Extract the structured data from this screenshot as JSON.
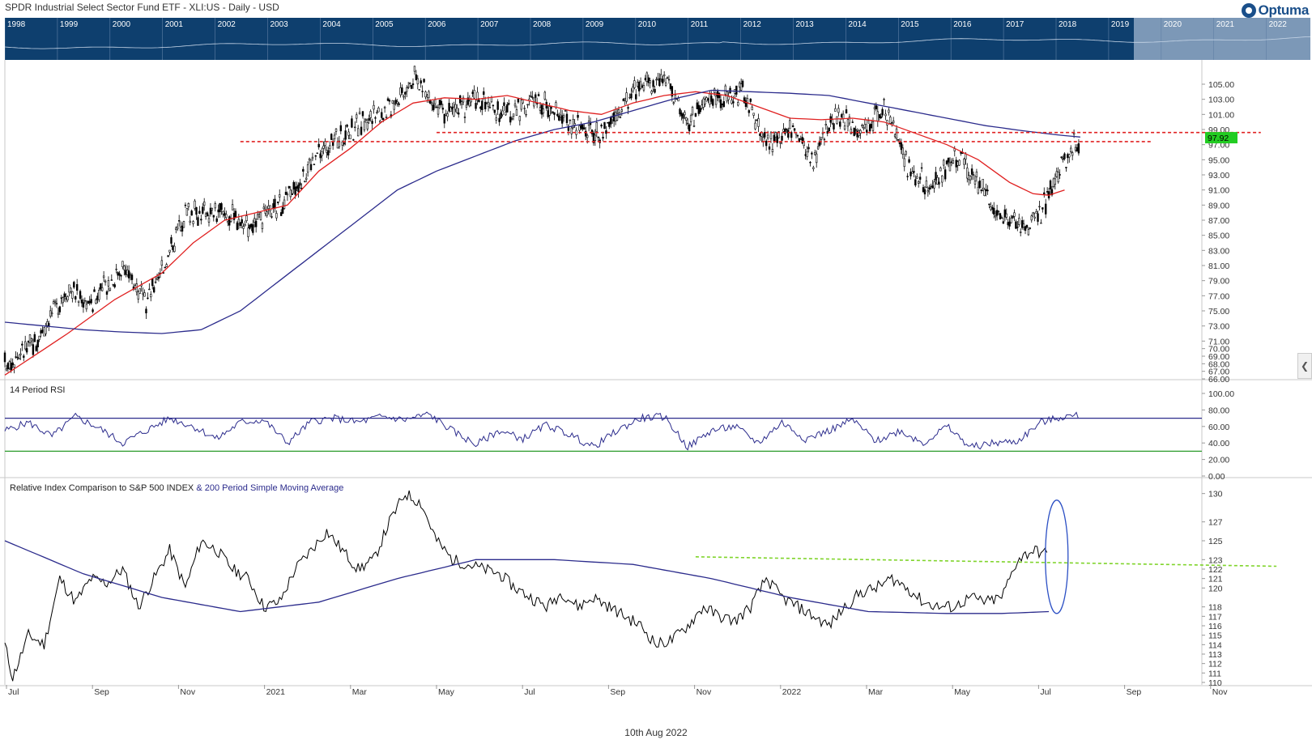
{
  "header": {
    "title": "SPDR Industrial Select Sector Fund ETF - XLI:US - Daily - USD",
    "logo_text": "Optuma"
  },
  "overview": {
    "years": [
      "1998",
      "1999",
      "2000",
      "2001",
      "2002",
      "2003",
      "2004",
      "2005",
      "2006",
      "2007",
      "2008",
      "2009",
      "2010",
      "2011",
      "2012",
      "2013",
      "2014",
      "2015",
      "2016",
      "2017",
      "2018",
      "2019",
      "2020",
      "2021",
      "2022"
    ],
    "colors": {
      "background": "#0e3f6e",
      "highlight": "#8fa8c4"
    }
  },
  "footer": {
    "date": "10th Aug 2022"
  },
  "x_axis": {
    "labels": [
      "Jul",
      "Sep",
      "Nov",
      "2021",
      "Mar",
      "May",
      "Jul",
      "Sep",
      "Nov",
      "2022",
      "Mar",
      "May",
      "Jul",
      "Sep",
      "Nov"
    ]
  },
  "chart_data": [
    {
      "type": "candlestick",
      "panel": "price",
      "ylim": [
        66,
        108
      ],
      "y_ticks": [
        "105.00",
        "103.00",
        "101.00",
        "99.00",
        "97.00",
        "95.00",
        "93.00",
        "91.00",
        "89.00",
        "87.00",
        "85.00",
        "83.00",
        "81.00",
        "79.00",
        "77.00",
        "75.00",
        "73.00",
        "71.00",
        "70.00",
        "69.00",
        "68.00",
        "67.00",
        "66.00"
      ],
      "last_price": "97.92",
      "series": [
        {
          "name": "XLI price",
          "color": "#000000",
          "keypoints": [
            [
              0,
              68
            ],
            [
              4,
              71
            ],
            [
              8,
              78
            ],
            [
              11,
              76
            ],
            [
              15,
              81
            ],
            [
              18,
              76
            ],
            [
              21,
              83
            ],
            [
              23,
              88
            ],
            [
              28,
              88
            ],
            [
              32,
              86
            ],
            [
              36,
              90
            ],
            [
              40,
              96
            ],
            [
              44,
              99
            ],
            [
              49,
              102
            ],
            [
              52,
              106
            ],
            [
              56,
              101
            ],
            [
              60,
              103
            ],
            [
              64,
              101
            ],
            [
              68,
              103
            ],
            [
              72,
              100
            ],
            [
              76,
              98
            ],
            [
              80,
              104
            ],
            [
              84,
              106
            ],
            [
              87,
              100
            ],
            [
              90,
              103
            ],
            [
              94,
              104
            ],
            [
              97,
              97
            ],
            [
              100,
              99
            ],
            [
              103,
              95
            ],
            [
              106,
              101
            ],
            [
              109,
              99
            ],
            [
              112,
              102
            ],
            [
              115,
              94
            ],
            [
              118,
              91
            ],
            [
              121,
              96
            ],
            [
              124,
              92
            ],
            [
              127,
              87
            ],
            [
              130,
              86
            ],
            [
              132,
              88
            ],
            [
              135,
              95
            ],
            [
              137,
              97.9
            ]
          ]
        },
        {
          "name": "50 period moving average",
          "color": "#e02020",
          "keypoints": [
            [
              0,
              66.5
            ],
            [
              8,
              72
            ],
            [
              14,
              76.5
            ],
            [
              20,
              80
            ],
            [
              24,
              84
            ],
            [
              28,
              87
            ],
            [
              32,
              88
            ],
            [
              36,
              89
            ],
            [
              40,
              93.5
            ],
            [
              44,
              96.5
            ],
            [
              48,
              100
            ],
            [
              52,
              102.5
            ],
            [
              56,
              103.2
            ],
            [
              60,
              103
            ],
            [
              64,
              103.5
            ],
            [
              68,
              102.5
            ],
            [
              72,
              101.5
            ],
            [
              76,
              101
            ],
            [
              80,
              102.5
            ],
            [
              84,
              103.5
            ],
            [
              88,
              104
            ],
            [
              92,
              103.5
            ],
            [
              96,
              102
            ],
            [
              100,
              100.5
            ],
            [
              104,
              100.3
            ],
            [
              108,
              100.5
            ],
            [
              112,
              100
            ],
            [
              116,
              98.5
            ],
            [
              120,
              97
            ],
            [
              124,
              95
            ],
            [
              128,
              92
            ],
            [
              131,
              90.5
            ],
            [
              133,
              90.3
            ],
            [
              135,
              91
            ]
          ]
        },
        {
          "name": "200 period moving average",
          "color": "#2b2b8c",
          "keypoints": [
            [
              0,
              73.5
            ],
            [
              5,
              73
            ],
            [
              10,
              72.5
            ],
            [
              15,
              72.2
            ],
            [
              20,
              72
            ],
            [
              25,
              72.5
            ],
            [
              30,
              75
            ],
            [
              35,
              79
            ],
            [
              40,
              83
            ],
            [
              45,
              87
            ],
            [
              50,
              91
            ],
            [
              55,
              93.5
            ],
            [
              60,
              95.5
            ],
            [
              65,
              97.5
            ],
            [
              70,
              99
            ],
            [
              75,
              100
            ],
            [
              80,
              101.5
            ],
            [
              85,
              103
            ],
            [
              90,
              104.2
            ],
            [
              95,
              104
            ],
            [
              100,
              103.8
            ],
            [
              105,
              103.5
            ],
            [
              110,
              102.5
            ],
            [
              115,
              101.5
            ],
            [
              120,
              100.5
            ],
            [
              125,
              99.5
            ],
            [
              130,
              98.8
            ],
            [
              134,
              98.3
            ],
            [
              137,
              98
            ]
          ]
        }
      ],
      "annotations": [
        {
          "type": "horizontal",
          "value": 97.4,
          "x_start": 30,
          "x_end": 146,
          "color": "#e02020",
          "style": "dashed"
        },
        {
          "type": "horizontal",
          "value": 98.6,
          "x_start": 55,
          "x_end": 160,
          "color": "#e02020",
          "style": "dashed"
        }
      ]
    },
    {
      "type": "line",
      "panel": "rsi",
      "title": "14 Period RSI",
      "ylim": [
        0,
        100
      ],
      "y_ticks": [
        "100.00",
        "80.00",
        "60.00",
        "40.00",
        "20.00",
        "0.00"
      ],
      "reference_lines": [
        {
          "value": 70,
          "color": "#2b2b8c"
        },
        {
          "value": 30,
          "color": "#2a9a2a"
        }
      ],
      "series": [
        {
          "name": "RSI",
          "color": "#2b2b8c",
          "keypoints": [
            [
              0,
              55
            ],
            [
              3,
              65
            ],
            [
              6,
              48
            ],
            [
              9,
              72
            ],
            [
              12,
              58
            ],
            [
              15,
              40
            ],
            [
              18,
              55
            ],
            [
              21,
              70
            ],
            [
              24,
              60
            ],
            [
              27,
              45
            ],
            [
              30,
              65
            ],
            [
              33,
              68
            ],
            [
              36,
              40
            ],
            [
              39,
              66
            ],
            [
              42,
              70
            ],
            [
              45,
              65
            ],
            [
              48,
              72
            ],
            [
              51,
              68
            ],
            [
              54,
              75
            ],
            [
              57,
              55
            ],
            [
              60,
              38
            ],
            [
              63,
              55
            ],
            [
              66,
              45
            ],
            [
              69,
              62
            ],
            [
              72,
              50
            ],
            [
              75,
              35
            ],
            [
              78,
              55
            ],
            [
              81,
              70
            ],
            [
              84,
              72
            ],
            [
              87,
              35
            ],
            [
              90,
              55
            ],
            [
              93,
              60
            ],
            [
              96,
              40
            ],
            [
              99,
              65
            ],
            [
              102,
              45
            ],
            [
              105,
              55
            ],
            [
              108,
              68
            ],
            [
              111,
              42
            ],
            [
              114,
              55
            ],
            [
              117,
              40
            ],
            [
              120,
              60
            ],
            [
              123,
              35
            ],
            [
              126,
              40
            ],
            [
              129,
              42
            ],
            [
              132,
              65
            ],
            [
              135,
              72
            ],
            [
              137,
              73
            ]
          ]
        }
      ]
    },
    {
      "type": "line",
      "panel": "relative",
      "title": "Relative Index Comparison to S&P 500 INDEX",
      "title_suffix": "& 200 Period Simple Moving Average",
      "ylim": [
        110,
        131
      ],
      "y_ticks": [
        "130",
        "127",
        "125",
        "123",
        "122",
        "121",
        "120",
        "118",
        "117",
        "116",
        "115",
        "114",
        "113",
        "112",
        "111",
        "110"
      ],
      "series": [
        {
          "name": "Relative ratio",
          "color": "#000000",
          "keypoints": [
            [
              0,
              114
            ],
            [
              1,
              110.5
            ],
            [
              3,
              115
            ],
            [
              5,
              114
            ],
            [
              7,
              121
            ],
            [
              9,
              118.5
            ],
            [
              11,
              121
            ],
            [
              13,
              120.5
            ],
            [
              15,
              122
            ],
            [
              17,
              118
            ],
            [
              19,
              121
            ],
            [
              21,
              124
            ],
            [
              23,
              120
            ],
            [
              25,
              125
            ],
            [
              27,
              124
            ],
            [
              29,
              122
            ],
            [
              31,
              121
            ],
            [
              33,
              118
            ],
            [
              35,
              118.5
            ],
            [
              37,
              122
            ],
            [
              39,
              124
            ],
            [
              41,
              126
            ],
            [
              43,
              124
            ],
            [
              45,
              122
            ],
            [
              47,
              123
            ],
            [
              49,
              127
            ],
            [
              51,
              130
            ],
            [
              53,
              129
            ],
            [
              55,
              125
            ],
            [
              57,
              123
            ],
            [
              59,
              122.5
            ],
            [
              61,
              122
            ],
            [
              63,
              121.5
            ],
            [
              65,
              120
            ],
            [
              67,
              119
            ],
            [
              69,
              118
            ],
            [
              71,
              119.5
            ],
            [
              73,
              118
            ],
            [
              75,
              119
            ],
            [
              77,
              118
            ],
            [
              79,
              117
            ],
            [
              81,
              116
            ],
            [
              83,
              114
            ],
            [
              85,
              114.5
            ],
            [
              87,
              116
            ],
            [
              89,
              118
            ],
            [
              91,
              117
            ],
            [
              93,
              116.5
            ],
            [
              95,
              118
            ],
            [
              97,
              121
            ],
            [
              99,
              119
            ],
            [
              101,
              118
            ],
            [
              103,
              117
            ],
            [
              105,
              116
            ],
            [
              107,
              118
            ],
            [
              109,
              119.5
            ],
            [
              111,
              120
            ],
            [
              113,
              121
            ],
            [
              115,
              120
            ],
            [
              117,
              118.5
            ],
            [
              119,
              118
            ],
            [
              121,
              118
            ],
            [
              123,
              119
            ],
            [
              125,
              118.5
            ],
            [
              127,
              119
            ],
            [
              129,
              123
            ],
            [
              131,
              124
            ],
            [
              133,
              123.5
            ]
          ]
        },
        {
          "name": "200 period SMA",
          "color": "#2b2b8c",
          "keypoints": [
            [
              0,
              125
            ],
            [
              10,
              121.5
            ],
            [
              20,
              119
            ],
            [
              30,
              117.5
            ],
            [
              40,
              118.5
            ],
            [
              50,
              121
            ],
            [
              60,
              123
            ],
            [
              70,
              123
            ],
            [
              80,
              122.5
            ],
            [
              90,
              121
            ],
            [
              100,
              119
            ],
            [
              110,
              117.5
            ],
            [
              120,
              117.3
            ],
            [
              127,
              117.3
            ],
            [
              133,
              117.5
            ]
          ]
        }
      ],
      "annotations": [
        {
          "type": "trendline",
          "x_start": 88,
          "value_start": 123.3,
          "x_end": 162,
          "value_end": 122.3,
          "color": "#7fd42a",
          "style": "dashed"
        },
        {
          "type": "ellipse",
          "x_center": 134,
          "value_center": 123.3,
          "color": "#2b4fc4"
        }
      ]
    }
  ]
}
